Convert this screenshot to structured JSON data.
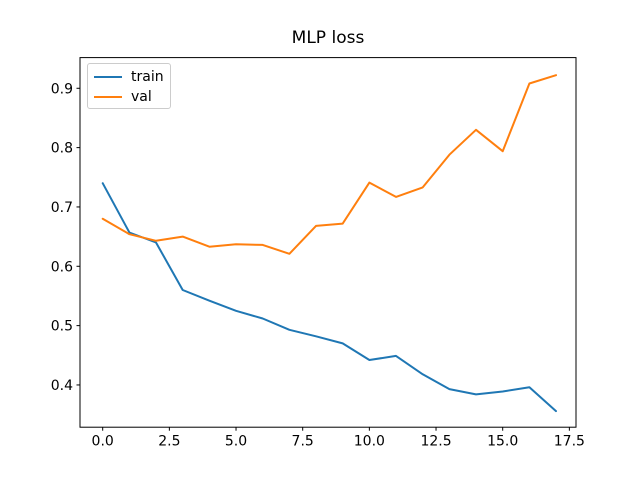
{
  "figure": {
    "background": "#ffffff",
    "axes_border_color": "#000000",
    "tick_label_color": "#000000"
  },
  "chart_data": {
    "type": "line",
    "title": "MLP loss",
    "xlabel": "",
    "ylabel": "",
    "grid": false,
    "x": [
      0,
      1,
      2,
      3,
      4,
      5,
      6,
      7,
      8,
      9,
      10,
      11,
      12,
      13,
      14,
      15,
      16,
      17
    ],
    "series": [
      {
        "name": "train",
        "color": "#1f77b4",
        "values": [
          0.74,
          0.657,
          0.64,
          0.56,
          0.542,
          0.525,
          0.512,
          0.493,
          0.482,
          0.47,
          0.442,
          0.449,
          0.418,
          0.393,
          0.384,
          0.389,
          0.396,
          0.356
        ]
      },
      {
        "name": "val",
        "color": "#ff7f0e",
        "values": [
          0.68,
          0.654,
          0.643,
          0.65,
          0.633,
          0.637,
          0.636,
          0.621,
          0.668,
          0.672,
          0.741,
          0.717,
          0.733,
          0.788,
          0.83,
          0.794,
          0.908,
          0.922
        ]
      }
    ],
    "xlim": [
      -0.851,
      17.749
    ],
    "ylim": [
      0.3288,
      0.9517
    ],
    "x_ticks": {
      "values": [
        0,
        2.5,
        5,
        7.5,
        10,
        12.5,
        15,
        17.5
      ],
      "labels": [
        "0.0",
        "2.5",
        "5.0",
        "7.5",
        "10.0",
        "12.5",
        "15.0",
        "17.5"
      ]
    },
    "y_ticks": {
      "values": [
        0.4,
        0.5,
        0.6,
        0.7,
        0.8,
        0.9
      ],
      "labels": [
        "0.4",
        "0.5",
        "0.6",
        "0.7",
        "0.8",
        "0.9"
      ]
    },
    "legend": {
      "position": "upper-left",
      "entries": [
        "train",
        "val"
      ]
    }
  }
}
